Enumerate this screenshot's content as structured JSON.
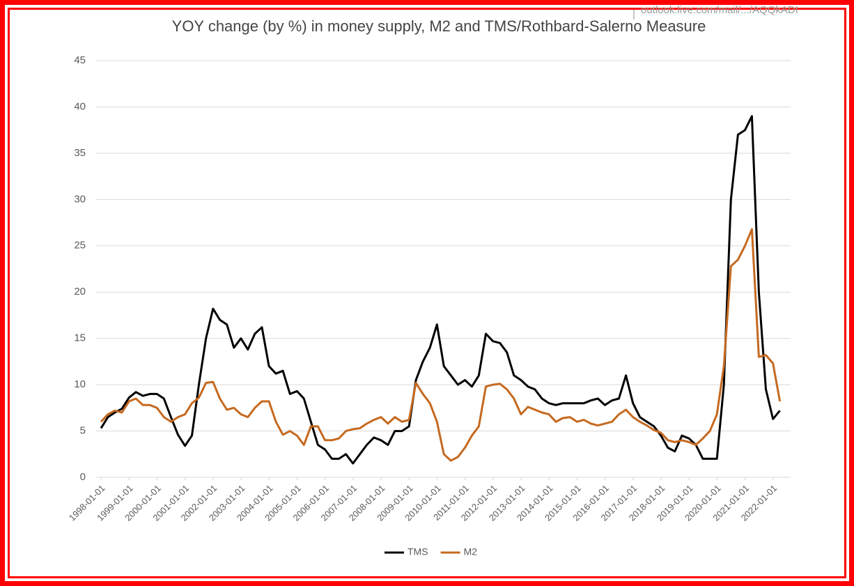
{
  "overlay_text": "outlook.live.com/mail/.../AQQkADI",
  "chart_data": {
    "type": "line",
    "title": "YOY change (by %) in money supply, M2 and TMS/Rothbard-Salerno Measure",
    "x": [
      "1998-01-01",
      "1998-04-01",
      "1998-07-01",
      "1998-10-01",
      "1999-01-01",
      "1999-04-01",
      "1999-07-01",
      "1999-10-01",
      "2000-01-01",
      "2000-04-01",
      "2000-07-01",
      "2000-10-01",
      "2001-01-01",
      "2001-04-01",
      "2001-07-01",
      "2001-10-01",
      "2002-01-01",
      "2002-04-01",
      "2002-07-01",
      "2002-10-01",
      "2003-01-01",
      "2003-04-01",
      "2003-07-01",
      "2003-10-01",
      "2004-01-01",
      "2004-04-01",
      "2004-07-01",
      "2004-10-01",
      "2005-01-01",
      "2005-04-01",
      "2005-07-01",
      "2005-10-01",
      "2006-01-01",
      "2006-04-01",
      "2006-07-01",
      "2006-10-01",
      "2007-01-01",
      "2007-04-01",
      "2007-07-01",
      "2007-10-01",
      "2008-01-01",
      "2008-04-01",
      "2008-07-01",
      "2008-10-01",
      "2009-01-01",
      "2009-04-01",
      "2009-07-01",
      "2009-10-01",
      "2010-01-01",
      "2010-04-01",
      "2010-07-01",
      "2010-10-01",
      "2011-01-01",
      "2011-04-01",
      "2011-07-01",
      "2011-10-01",
      "2012-01-01",
      "2012-04-01",
      "2012-07-01",
      "2012-10-01",
      "2013-01-01",
      "2013-04-01",
      "2013-07-01",
      "2013-10-01",
      "2014-01-01",
      "2014-04-01",
      "2014-07-01",
      "2014-10-01",
      "2015-01-01",
      "2015-04-01",
      "2015-07-01",
      "2015-10-01",
      "2016-01-01",
      "2016-04-01",
      "2016-07-01",
      "2016-10-01",
      "2017-01-01",
      "2017-04-01",
      "2017-07-01",
      "2017-10-01",
      "2018-01-01",
      "2018-04-01",
      "2018-07-01",
      "2018-10-01",
      "2019-01-01",
      "2019-04-01",
      "2019-07-01",
      "2019-10-01",
      "2020-01-01",
      "2020-04-01",
      "2020-07-01",
      "2020-10-01",
      "2021-01-01",
      "2021-04-01",
      "2021-07-01",
      "2021-10-01",
      "2022-01-01",
      "2022-04-01"
    ],
    "series": [
      {
        "name": "TMS",
        "color": "#000000",
        "values": [
          5.3,
          6.5,
          7.0,
          7.4,
          8.6,
          9.2,
          8.8,
          9.0,
          9.0,
          8.5,
          6.5,
          4.6,
          3.4,
          4.5,
          10,
          15,
          18.2,
          17,
          16.5,
          14,
          15,
          13.8,
          15.5,
          16.2,
          12,
          11.2,
          11.5,
          9,
          9.3,
          8.5,
          6,
          3.5,
          3.0,
          2.0,
          2.0,
          2.5,
          1.5,
          2.5,
          3.5,
          4.3,
          4.0,
          3.5,
          5.0,
          5.0,
          5.5,
          10.5,
          12.5,
          14,
          16.5,
          12,
          11,
          10,
          10.5,
          9.8,
          11,
          15.5,
          14.7,
          14.5,
          13.5,
          11,
          10.5,
          9.8,
          9.5,
          8.5,
          8,
          7.8,
          8,
          8,
          8,
          8,
          8.3,
          8.5,
          7.8,
          8.3,
          8.5,
          11,
          8,
          6.5,
          6,
          5.5,
          4.5,
          3.2,
          2.8,
          4.5,
          4.2,
          3.5,
          2.0,
          2.0,
          2.0,
          10,
          30,
          37,
          37.5,
          39,
          20,
          9.5,
          6.3,
          7.2
        ]
      },
      {
        "name": "M2",
        "color": "#c5691f",
        "values": [
          6.0,
          6.8,
          7.2,
          7.0,
          8.2,
          8.5,
          7.8,
          7.8,
          7.5,
          6.5,
          6.0,
          6.5,
          6.8,
          8,
          8.6,
          10.2,
          10.3,
          8.5,
          7.3,
          7.5,
          6.8,
          6.5,
          7.5,
          8.2,
          8.2,
          6,
          4.6,
          5,
          4.5,
          3.5,
          5.5,
          5.5,
          4.0,
          4.0,
          4.2,
          5.0,
          5.2,
          5.3,
          5.8,
          6.2,
          6.5,
          5.8,
          6.5,
          6.0,
          6.2,
          10.2,
          9,
          8,
          6,
          2.5,
          1.8,
          2.2,
          3.2,
          4.5,
          5.5,
          9.8,
          10,
          10.1,
          9.5,
          8.5,
          6.8,
          7.6,
          7.3,
          7,
          6.8,
          6,
          6.4,
          6.5,
          6,
          6.2,
          5.8,
          5.6,
          5.8,
          6,
          6.8,
          7.3,
          6.5,
          6,
          5.6,
          5.1,
          4.8,
          4,
          3.8,
          4.0,
          3.8,
          3.5,
          4.2,
          5.0,
          6.8,
          12,
          22.8,
          23.5,
          25,
          26.8,
          13,
          13.2,
          12.3,
          8.2
        ]
      }
    ],
    "xlim": [
      "1998-01-01",
      "2022-08-01"
    ],
    "xticks": [
      "1998-01-01",
      "1999-01-01",
      "2000-01-01",
      "2001-01-01",
      "2002-01-01",
      "2003-01-01",
      "2004-01-01",
      "2005-01-01",
      "2006-01-01",
      "2007-01-01",
      "2008-01-01",
      "2009-01-01",
      "2010-01-01",
      "2011-01-01",
      "2012-01-01",
      "2013-01-01",
      "2014-01-01",
      "2015-01-01",
      "2016-01-01",
      "2017-01-01",
      "2018-01-01",
      "2019-01-01",
      "2020-01-01",
      "2021-01-01",
      "2022-01-01"
    ],
    "ylim": [
      0,
      45
    ],
    "yticks": [
      0,
      5,
      10,
      15,
      20,
      25,
      30,
      35,
      40,
      45
    ],
    "grid": true,
    "legend": "bottom"
  }
}
